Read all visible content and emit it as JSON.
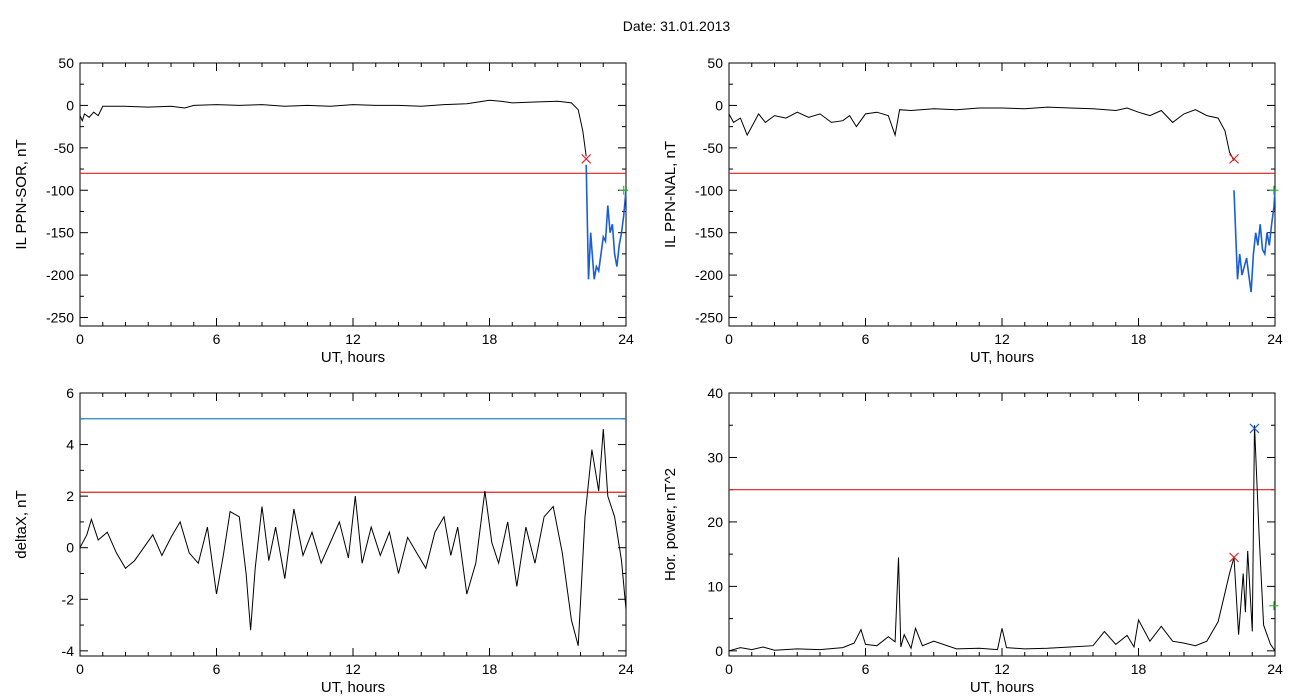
{
  "page": {
    "title": "Date:  31.01.2013"
  },
  "colors": {
    "trace": "#000000",
    "threshold_red": "#e02020",
    "threshold_cyan": "#1a8fbf",
    "storm_blue": "#1a5fd0",
    "marker_green": "#33bb33"
  },
  "chart_data": [
    {
      "type": "line",
      "panel": "top-left",
      "title": "",
      "ylabel": "IL PPN-SOR, nT",
      "xlabel": "UT, hours",
      "xlim": [
        0,
        24
      ],
      "ylim": [
        -260,
        50
      ],
      "xticks": [
        0,
        6,
        12,
        18,
        24
      ],
      "yticks": [
        50,
        0,
        -50,
        -100,
        -150,
        -200,
        -250
      ],
      "series": [
        {
          "color": "trace",
          "x": [
            0,
            0.1,
            0.2,
            0.4,
            0.6,
            0.8,
            1,
            2,
            3,
            4,
            4.6,
            5,
            6,
            7,
            8,
            9,
            10,
            11,
            12,
            13,
            14,
            15,
            16,
            17,
            17.5,
            18,
            18.5,
            19,
            20,
            21,
            21.6,
            21.9,
            22.1,
            22.25
          ],
          "y": [
            -12,
            -18,
            -10,
            -14,
            -8,
            -12,
            -1,
            -1,
            -2,
            -1,
            -3,
            0,
            1,
            0,
            1,
            -1,
            0,
            -1,
            1,
            0,
            0,
            -1,
            1,
            2,
            4,
            6,
            5,
            3,
            4,
            5,
            3,
            -5,
            -30,
            -60
          ]
        },
        {
          "color": "storm_blue",
          "x": [
            22.25,
            22.35,
            22.45,
            22.5,
            22.6,
            22.7,
            22.8,
            22.9,
            23,
            23.1,
            23.2,
            23.3,
            23.4,
            23.5,
            23.6,
            23.7,
            23.8,
            23.9,
            24
          ],
          "y": [
            -70,
            -205,
            -150,
            -170,
            -205,
            -190,
            -195,
            -175,
            -155,
            -160,
            -118,
            -150,
            -140,
            -175,
            -190,
            -165,
            -150,
            -130,
            -100
          ]
        }
      ],
      "threshold_lines": [
        {
          "y": -80,
          "color": "threshold_red"
        }
      ],
      "markers": [
        {
          "x": 22.25,
          "y": -63,
          "color": "threshold_red",
          "symbol": "x"
        },
        {
          "x": 23.9,
          "y": -100,
          "color": "marker_green",
          "symbol": "+"
        }
      ]
    },
    {
      "type": "line",
      "panel": "top-right",
      "title": "",
      "ylabel": "IL PPN-NAL, nT",
      "xlabel": "UT, hours",
      "xlim": [
        0,
        24
      ],
      "ylim": [
        -260,
        50
      ],
      "xticks": [
        0,
        6,
        12,
        18,
        24
      ],
      "yticks": [
        50,
        0,
        -50,
        -100,
        -150,
        -200,
        -250
      ],
      "series": [
        {
          "color": "trace",
          "x": [
            0,
            0.2,
            0.5,
            0.8,
            1,
            1.3,
            1.6,
            2,
            2.5,
            3,
            3.5,
            4,
            4.5,
            5,
            5.3,
            5.6,
            6,
            6.5,
            7,
            7.3,
            7.5,
            8,
            9,
            10,
            11,
            12,
            13,
            14,
            15,
            16,
            17,
            17.5,
            18,
            18.5,
            19,
            19.5,
            20,
            20.5,
            21,
            21.5,
            21.8,
            22,
            22.2
          ],
          "y": [
            -10,
            -20,
            -15,
            -35,
            -25,
            -10,
            -20,
            -12,
            -15,
            -8,
            -14,
            -10,
            -20,
            -18,
            -12,
            -25,
            -10,
            -8,
            -12,
            -35,
            -5,
            -6,
            -4,
            -5,
            -3,
            -3,
            -4,
            -2,
            -3,
            -4,
            -6,
            -3,
            -8,
            -12,
            -6,
            -20,
            -10,
            -5,
            -12,
            -15,
            -30,
            -55,
            -65
          ]
        },
        {
          "color": "storm_blue",
          "x": [
            22.2,
            22.35,
            22.45,
            22.55,
            22.65,
            22.75,
            22.85,
            22.95,
            23.05,
            23.15,
            23.25,
            23.35,
            23.45,
            23.55,
            23.65,
            23.75,
            23.85,
            23.95,
            24
          ],
          "y": [
            -100,
            -205,
            -175,
            -200,
            -190,
            -180,
            -200,
            -220,
            -175,
            -150,
            -165,
            -140,
            -170,
            -175,
            -150,
            -165,
            -140,
            -120,
            -100
          ]
        }
      ],
      "threshold_lines": [
        {
          "y": -80,
          "color": "threshold_red"
        }
      ],
      "markers": [
        {
          "x": 22.2,
          "y": -63,
          "color": "threshold_red",
          "symbol": "x"
        },
        {
          "x": 23.95,
          "y": -100,
          "color": "marker_green",
          "symbol": "+"
        }
      ]
    },
    {
      "type": "line",
      "panel": "bottom-left",
      "title": "",
      "ylabel": "deltaX, nT",
      "xlabel": "UT, hours",
      "xlim": [
        0,
        24
      ],
      "ylim": [
        -4.2,
        6
      ],
      "xticks": [
        0,
        6,
        12,
        18,
        24
      ],
      "yticks": [
        6,
        4,
        2,
        0,
        -2,
        -4
      ],
      "series": [
        {
          "color": "trace",
          "x": [
            0,
            0.3,
            0.5,
            0.8,
            1.2,
            1.6,
            2,
            2.4,
            2.8,
            3.2,
            3.6,
            4,
            4.4,
            4.8,
            5.2,
            5.6,
            6,
            6.3,
            6.6,
            7,
            7.3,
            7.5,
            7.7,
            8,
            8.3,
            8.6,
            9,
            9.4,
            9.8,
            10.2,
            10.6,
            11,
            11.4,
            11.8,
            12.1,
            12.4,
            12.8,
            13.2,
            13.6,
            14,
            14.4,
            14.8,
            15.2,
            15.6,
            16,
            16.3,
            16.6,
            17,
            17.4,
            17.8,
            18.1,
            18.4,
            18.8,
            19.2,
            19.6,
            20,
            20.4,
            20.8,
            21.2,
            21.6,
            21.9,
            22.2,
            22.5,
            22.8,
            23,
            23.2,
            23.5,
            23.8,
            24
          ],
          "y": [
            0,
            0.5,
            1.1,
            0.3,
            0.6,
            -0.2,
            -0.8,
            -0.5,
            0,
            0.5,
            -0.3,
            0.4,
            1,
            -0.2,
            -0.6,
            0.8,
            -1.8,
            -0.3,
            1.4,
            1.2,
            -1,
            -3.2,
            -0.8,
            1.6,
            -0.5,
            0.8,
            -1.2,
            1.5,
            -0.3,
            0.6,
            -0.6,
            0.2,
            1.0,
            -0.4,
            2.0,
            -0.6,
            0.8,
            -0.3,
            0.6,
            -1.0,
            0.4,
            -0.2,
            -0.8,
            0.6,
            1.2,
            -0.3,
            0.8,
            -1.8,
            -0.6,
            2.2,
            0.2,
            -0.6,
            1.0,
            -1.5,
            0.8,
            -0.6,
            1.2,
            1.6,
            -0.2,
            -2.8,
            -3.8,
            1.2,
            3.8,
            2.2,
            4.6,
            2.0,
            1.2,
            -0.5,
            -2.4
          ]
        }
      ],
      "threshold_lines": [
        {
          "y": 5,
          "color": "threshold_cyan"
        },
        {
          "y": 2.15,
          "color": "threshold_red"
        }
      ],
      "markers": []
    },
    {
      "type": "line",
      "panel": "bottom-right",
      "title": "",
      "ylabel": "Hor. power, nT^2",
      "xlabel": "UT, hours",
      "xlim": [
        0,
        24
      ],
      "ylim": [
        -0.8,
        40
      ],
      "xticks": [
        0,
        6,
        12,
        18,
        24
      ],
      "yticks": [
        40,
        30,
        20,
        10,
        0
      ],
      "series": [
        {
          "color": "trace",
          "x": [
            0,
            0.5,
            1,
            1.5,
            2,
            3,
            4,
            5,
            5.5,
            5.8,
            6,
            6.5,
            7,
            7.3,
            7.45,
            7.55,
            7.7,
            8,
            8.2,
            8.5,
            9,
            10,
            11,
            11.8,
            12,
            12.2,
            13,
            14,
            15,
            16,
            16.5,
            17,
            17.5,
            17.8,
            18,
            18.5,
            19,
            19.5,
            20,
            20.5,
            21,
            21.5,
            21.8,
            22,
            22.2,
            22.4,
            22.6,
            22.7,
            22.8,
            23,
            23.1,
            23.3,
            23.5,
            23.8,
            24
          ],
          "y": [
            0,
            0.5,
            0.2,
            0.6,
            0.1,
            0.3,
            0.2,
            0.5,
            1.2,
            3.3,
            1,
            0.8,
            2.2,
            1.4,
            14.5,
            0.6,
            2.5,
            0.4,
            3.5,
            0.8,
            1.5,
            0.3,
            0.4,
            0.2,
            3.5,
            0.5,
            0.3,
            0.4,
            0.6,
            0.8,
            3.0,
            1.0,
            2.4,
            0.6,
            4.8,
            1.5,
            3.8,
            1.5,
            1.2,
            0.8,
            1.5,
            4.5,
            9,
            12,
            14.5,
            2.5,
            12,
            6,
            15.5,
            3,
            35,
            18,
            4,
            1,
            0
          ]
        }
      ],
      "threshold_lines": [
        {
          "y": 25,
          "color": "threshold_red"
        }
      ],
      "markers": [
        {
          "x": 22.2,
          "y": 14.5,
          "color": "threshold_red",
          "symbol": "x"
        },
        {
          "x": 23.1,
          "y": 34.5,
          "color": "storm_blue",
          "symbol": "x"
        },
        {
          "x": 23.95,
          "y": 7,
          "color": "marker_green",
          "symbol": "+"
        }
      ]
    }
  ]
}
